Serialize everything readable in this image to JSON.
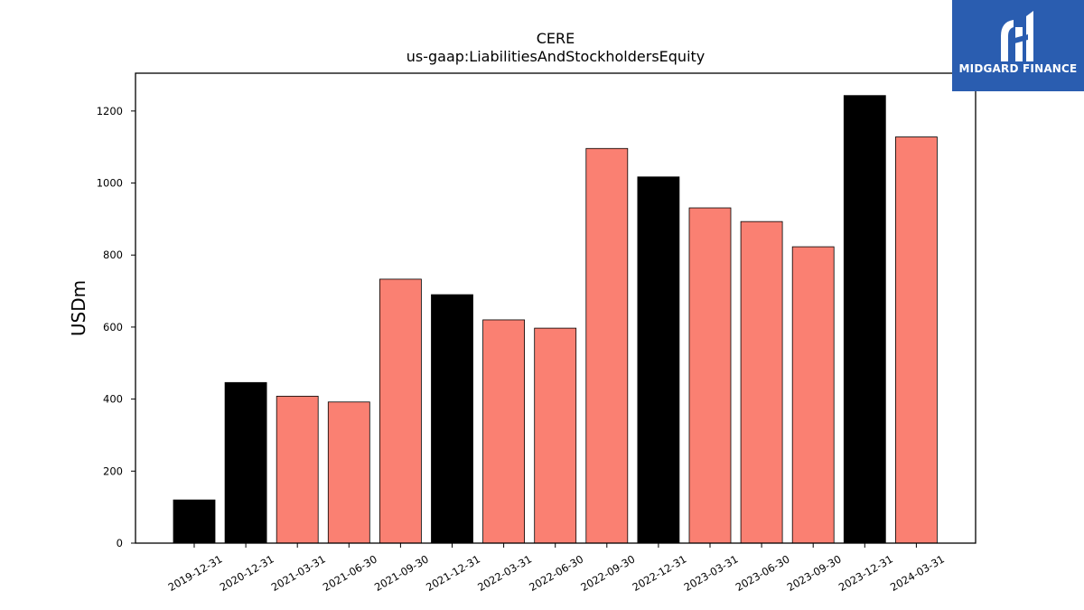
{
  "chart_data": {
    "type": "bar",
    "title": "CERE",
    "subtitle": "us-gaap:LiabilitiesAndStockholdersEquity",
    "xlabel": "",
    "ylabel": "USDm",
    "ylim": [
      0,
      1305
    ],
    "yticks": [
      0,
      200,
      400,
      600,
      800,
      1000,
      1200
    ],
    "grid": false,
    "categories": [
      "2019-12-31",
      "2020-12-31",
      "2021-03-31",
      "2021-06-30",
      "2021-09-30",
      "2021-12-31",
      "2022-03-31",
      "2022-06-30",
      "2022-09-30",
      "2022-12-31",
      "2023-03-31",
      "2023-06-30",
      "2023-09-30",
      "2023-12-31",
      "2024-03-31"
    ],
    "values": [
      120,
      446,
      408,
      392,
      733,
      690,
      620,
      597,
      1096,
      1017,
      931,
      893,
      823,
      1243,
      1128
    ],
    "bar_colors": [
      "#000000",
      "#000000",
      "#fa8072",
      "#fa8072",
      "#fa8072",
      "#000000",
      "#fa8072",
      "#fa8072",
      "#fa8072",
      "#000000",
      "#fa8072",
      "#fa8072",
      "#fa8072",
      "#000000",
      "#fa8072"
    ]
  },
  "logo": {
    "text": "MIDGARD FINANCE",
    "background": "#2a5db0"
  }
}
